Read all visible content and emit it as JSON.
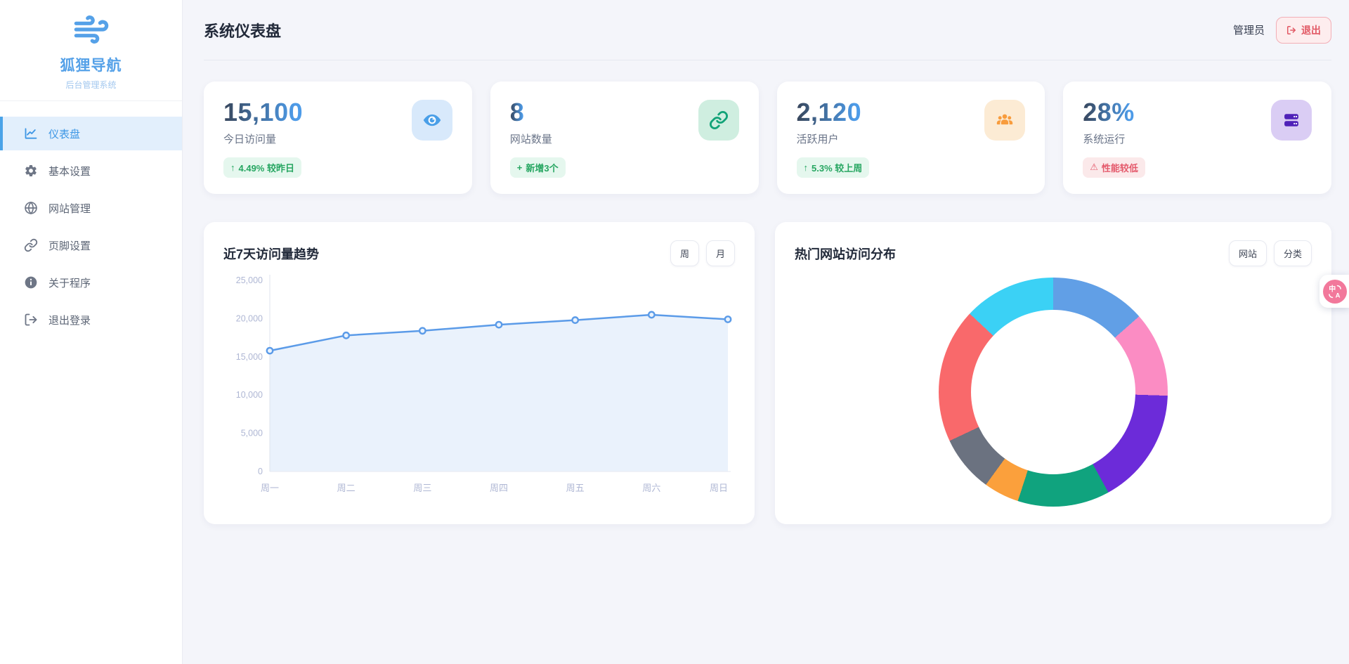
{
  "brand": {
    "title": "狐狸导航",
    "subtitle": "后台管理系统",
    "logo_icon": "wind-icon",
    "accent_color": "#55A1E8"
  },
  "sidebar": {
    "items": [
      {
        "label": "仪表盘",
        "icon": "dashboard-chart-icon",
        "active": true
      },
      {
        "label": "基本设置",
        "icon": "gear-icon",
        "active": false
      },
      {
        "label": "网站管理",
        "icon": "globe-icon",
        "active": false
      },
      {
        "label": "页脚设置",
        "icon": "link-icon",
        "active": false
      },
      {
        "label": "关于程序",
        "icon": "info-icon",
        "active": false
      },
      {
        "label": "退出登录",
        "icon": "logout-icon",
        "active": false
      }
    ]
  },
  "header": {
    "title": "系统仪表盘",
    "username": "管理员",
    "logout_button": "退出"
  },
  "stats": [
    {
      "value": "15,100",
      "label": "今日访问量",
      "badge_icon": "↑",
      "badge_text": "4.49% 较昨日",
      "badge_type": "success",
      "icon": "eye-icon",
      "tile_bg": "#D8E9FB",
      "tile_color": "#4A9FE8"
    },
    {
      "value": "8",
      "label": "网站数量",
      "badge_icon": "+",
      "badge_text": "新增3个",
      "badge_type": "success",
      "icon": "link-icon",
      "tile_bg": "#CFEEE0",
      "tile_color": "#12A378"
    },
    {
      "value": "2,120",
      "label": "活跃用户",
      "badge_icon": "↑",
      "badge_text": "5.3% 较上周",
      "badge_type": "success",
      "icon": "users-icon",
      "tile_bg": "#FCEBD4",
      "tile_color": "#F89C3D"
    },
    {
      "value": "28%",
      "label": "系统运行",
      "badge_icon": "⚠",
      "badge_text": "性能较低",
      "badge_type": "danger",
      "icon": "server-icon",
      "tile_bg": "#DACDF4",
      "tile_color": "#4F21B8"
    }
  ],
  "line_card": {
    "title": "近7天访问量趋势",
    "toggles": [
      "周",
      "月"
    ]
  },
  "donut_card": {
    "title": "热门网站访问分布",
    "toggles": [
      "网站",
      "分类"
    ]
  },
  "floating_translate": {
    "icon": "translate-icon",
    "glyph_primary": "中",
    "glyph_secondary": "A"
  },
  "chart_data": [
    {
      "type": "line",
      "title": "近7天访问量趋势",
      "categories": [
        "周一",
        "周二",
        "周三",
        "周四",
        "周五",
        "周六",
        "周日"
      ],
      "values": [
        15800,
        17800,
        18400,
        19200,
        19800,
        20500,
        19900
      ],
      "ylim": [
        0,
        25000
      ],
      "yticks": [
        {
          "value": 0,
          "label": "0"
        },
        {
          "value": 5000,
          "label": "5,000"
        },
        {
          "value": 10000,
          "label": "10,000"
        },
        {
          "value": 15000,
          "label": "15,000"
        },
        {
          "value": 20000,
          "label": "20,000"
        },
        {
          "value": 25000,
          "label": "25,000"
        }
      ],
      "line_color": "#5B9BE8",
      "area_color": "rgba(91,155,232,0.13)",
      "axis_label_color": "#AFB7D4",
      "grid": false,
      "legend": false
    },
    {
      "type": "pie",
      "variant": "donut",
      "title": "热门网站访问分布",
      "direction": "clockwise-from-top",
      "inner_radius_ratio": 0.72,
      "labels_visible": false,
      "legend": false,
      "segments": [
        {
          "color": "#619FE6",
          "percent": 13.5
        },
        {
          "color": "#FB8CC3",
          "percent": 12.0
        },
        {
          "color": "#6C2BD9",
          "percent": 16.5
        },
        {
          "color": "#10A37E",
          "percent": 13.0
        },
        {
          "color": "#FBA03C",
          "percent": 5.0
        },
        {
          "color": "#6B7280",
          "percent": 8.0
        },
        {
          "color": "#F9696B",
          "percent": 19.0
        },
        {
          "color": "#3BD1F5",
          "percent": 13.0
        }
      ]
    }
  ]
}
